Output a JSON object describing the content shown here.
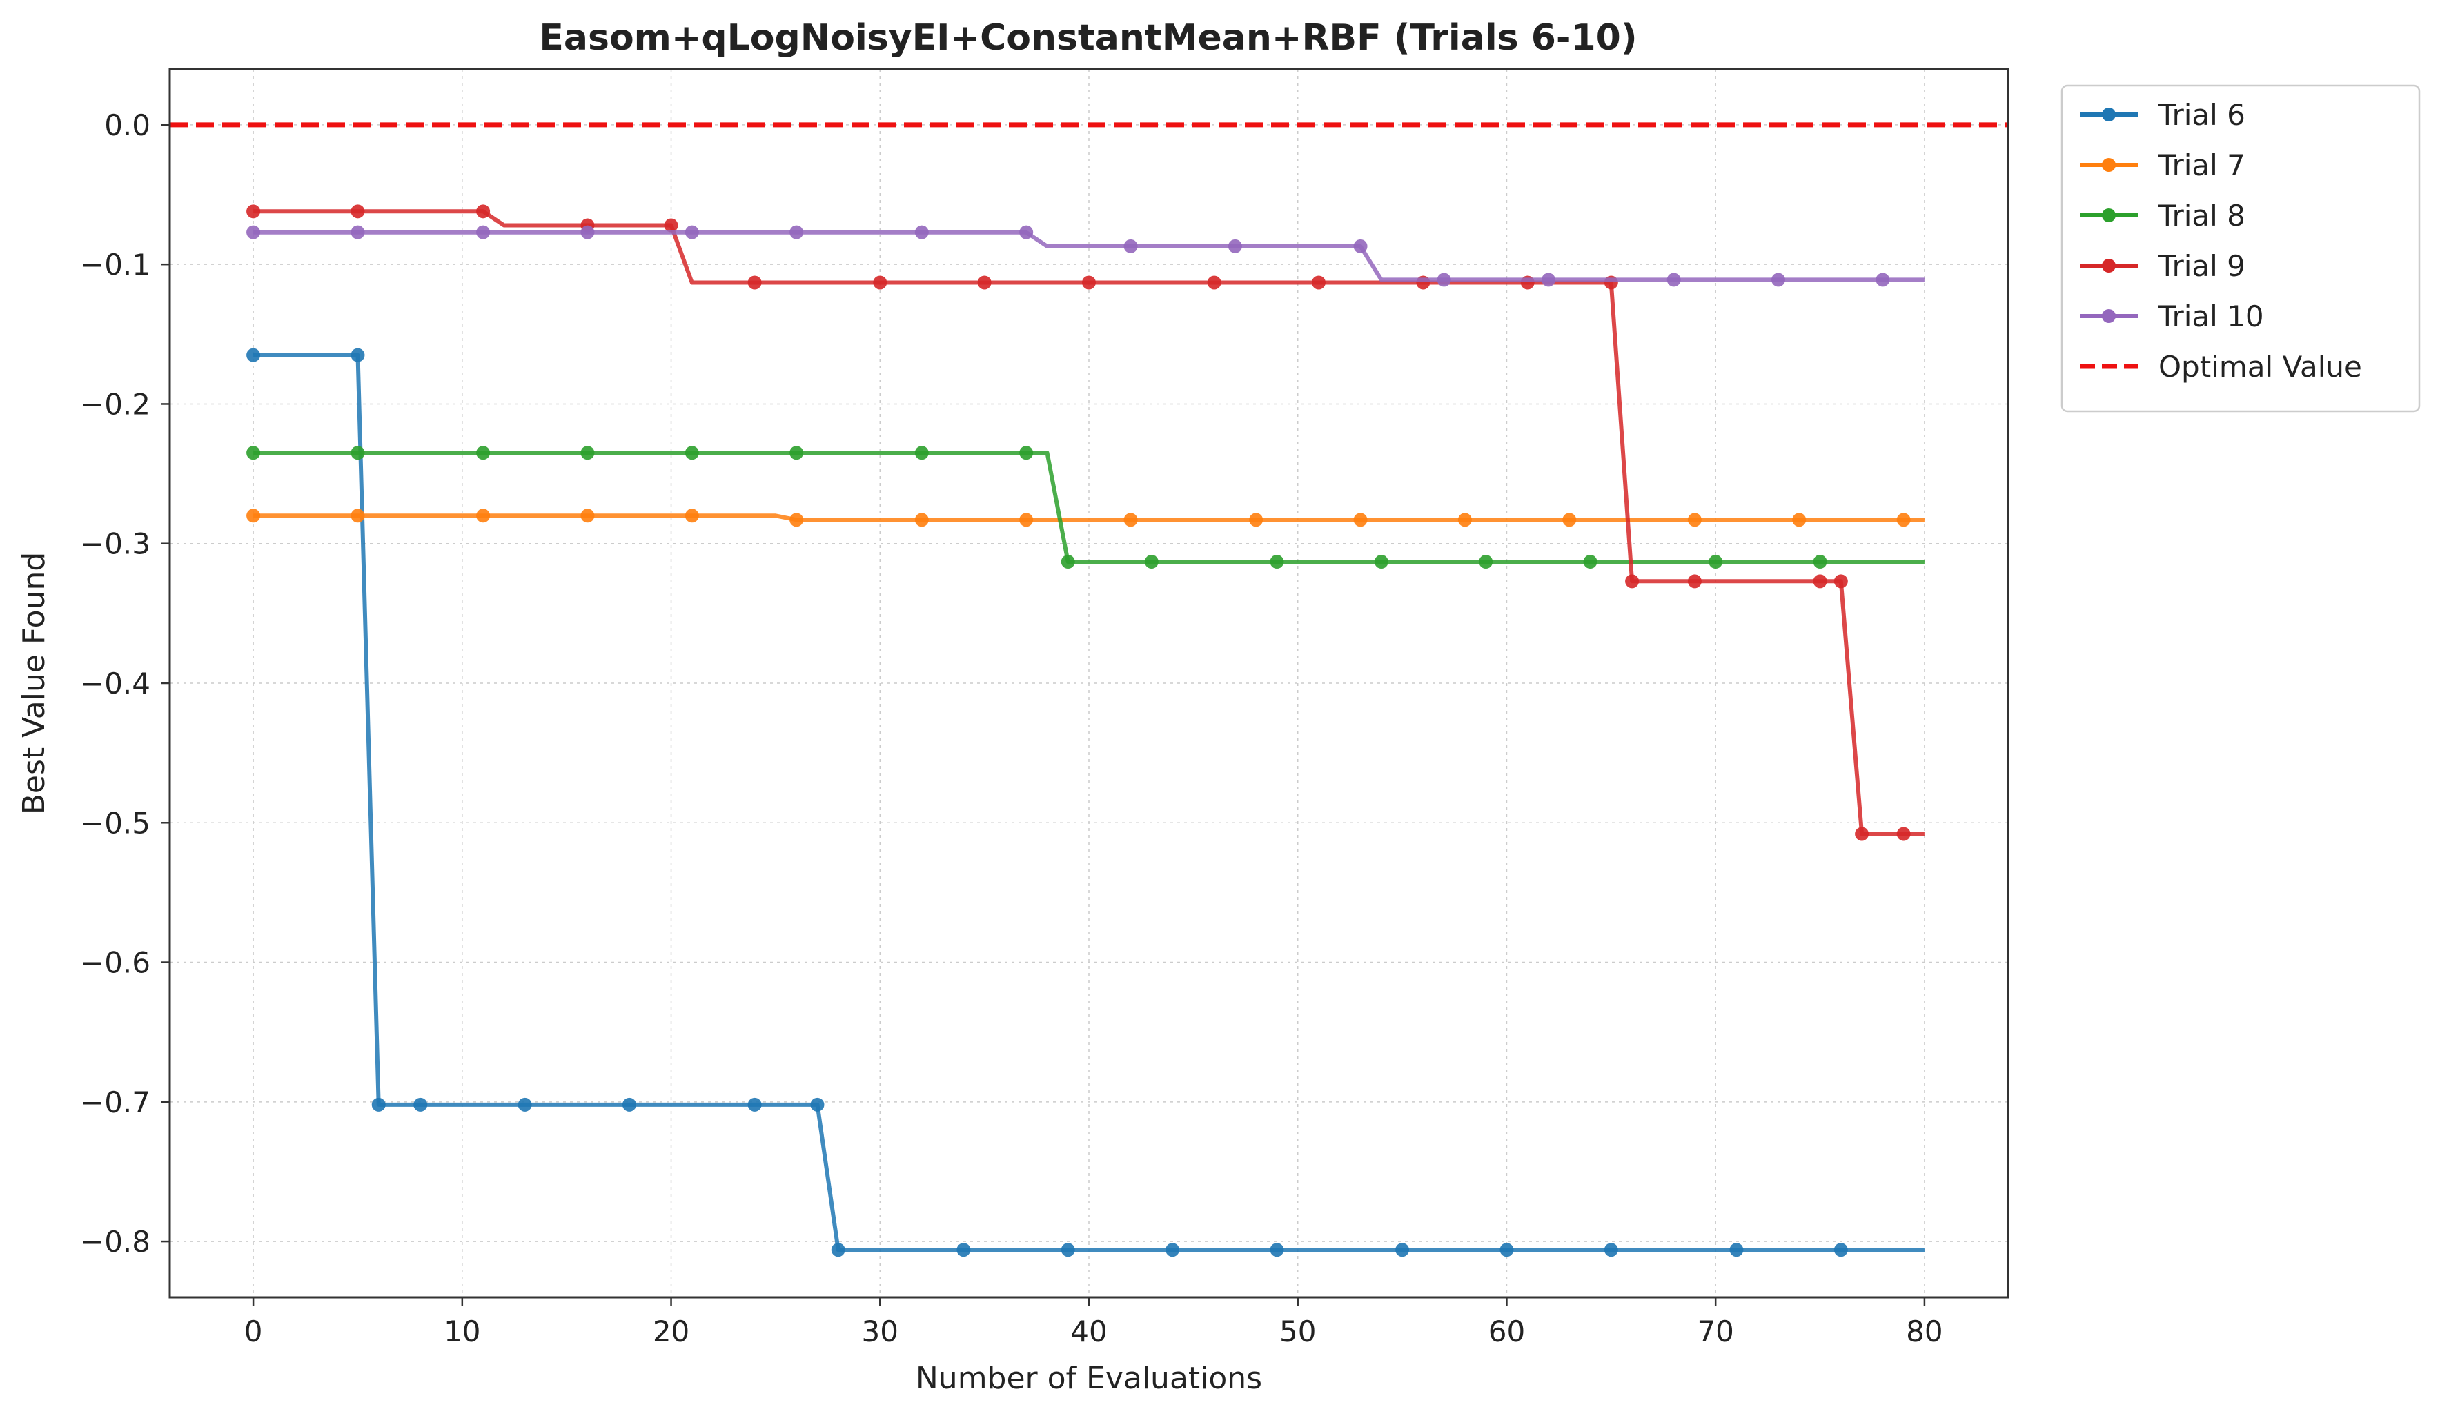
{
  "chart_data": {
    "type": "line",
    "title": "Easom+qLogNoisyEI+ConstantMean+RBF (Trials 6-10)",
    "xlabel": "Number of Evaluations",
    "ylabel": "Best Value Found",
    "xlim": [
      -4,
      84
    ],
    "ylim": [
      -0.84,
      0.04
    ],
    "xticks": [
      0,
      10,
      20,
      30,
      40,
      50,
      60,
      70,
      80
    ],
    "xtick_labels": [
      "0",
      "10",
      "20",
      "30",
      "40",
      "50",
      "60",
      "70",
      "80"
    ],
    "yticks": [
      0.0,
      -0.1,
      -0.2,
      -0.3,
      -0.4,
      -0.5,
      -0.6,
      -0.7,
      -0.8
    ],
    "ytick_labels": [
      "0.0",
      "−0.1",
      "−0.2",
      "−0.3",
      "−0.4",
      "−0.5",
      "−0.6",
      "−0.7",
      "−0.8"
    ],
    "grid": true,
    "legend_position": "outside-top-right",
    "series": [
      {
        "name": "Trial 6",
        "color": "#1f77b4",
        "steps": [
          [
            0,
            -0.165
          ],
          [
            5,
            -0.165
          ],
          [
            6,
            -0.702
          ],
          [
            27,
            -0.702
          ],
          [
            28,
            -0.806
          ],
          [
            80,
            -0.806
          ]
        ],
        "markers": [
          [
            0,
            -0.165
          ],
          [
            5,
            -0.165
          ],
          [
            6,
            -0.702
          ],
          [
            8,
            -0.702
          ],
          [
            13,
            -0.702
          ],
          [
            18,
            -0.702
          ],
          [
            24,
            -0.702
          ],
          [
            27,
            -0.702
          ],
          [
            28,
            -0.806
          ],
          [
            34,
            -0.806
          ],
          [
            39,
            -0.806
          ],
          [
            44,
            -0.806
          ],
          [
            49,
            -0.806
          ],
          [
            55,
            -0.806
          ],
          [
            60,
            -0.806
          ],
          [
            65,
            -0.806
          ],
          [
            71,
            -0.806
          ],
          [
            76,
            -0.806
          ]
        ]
      },
      {
        "name": "Trial 7",
        "color": "#ff7f0e",
        "steps": [
          [
            0,
            -0.28
          ],
          [
            25,
            -0.28
          ],
          [
            26,
            -0.283
          ],
          [
            80,
            -0.283
          ]
        ],
        "markers": [
          [
            0,
            -0.28
          ],
          [
            5,
            -0.28
          ],
          [
            11,
            -0.28
          ],
          [
            16,
            -0.28
          ],
          [
            21,
            -0.28
          ],
          [
            26,
            -0.283
          ],
          [
            32,
            -0.283
          ],
          [
            37,
            -0.283
          ],
          [
            42,
            -0.283
          ],
          [
            48,
            -0.283
          ],
          [
            53,
            -0.283
          ],
          [
            58,
            -0.283
          ],
          [
            63,
            -0.283
          ],
          [
            69,
            -0.283
          ],
          [
            74,
            -0.283
          ],
          [
            79,
            -0.283
          ]
        ]
      },
      {
        "name": "Trial 8",
        "color": "#2ca02c",
        "steps": [
          [
            0,
            -0.235
          ],
          [
            38,
            -0.235
          ],
          [
            39,
            -0.313
          ],
          [
            80,
            -0.313
          ]
        ],
        "markers": [
          [
            0,
            -0.235
          ],
          [
            5,
            -0.235
          ],
          [
            11,
            -0.235
          ],
          [
            16,
            -0.235
          ],
          [
            21,
            -0.235
          ],
          [
            26,
            -0.235
          ],
          [
            32,
            -0.235
          ],
          [
            37,
            -0.235
          ],
          [
            39,
            -0.313
          ],
          [
            43,
            -0.313
          ],
          [
            49,
            -0.313
          ],
          [
            54,
            -0.313
          ],
          [
            59,
            -0.313
          ],
          [
            64,
            -0.313
          ],
          [
            70,
            -0.313
          ],
          [
            75,
            -0.313
          ]
        ]
      },
      {
        "name": "Trial 9",
        "color": "#d62728",
        "steps": [
          [
            0,
            -0.062
          ],
          [
            11,
            -0.062
          ],
          [
            12,
            -0.072
          ],
          [
            20,
            -0.072
          ],
          [
            21,
            -0.113
          ],
          [
            65,
            -0.113
          ],
          [
            66,
            -0.327
          ],
          [
            76,
            -0.327
          ],
          [
            77,
            -0.508
          ],
          [
            80,
            -0.508
          ]
        ],
        "markers": [
          [
            0,
            -0.062
          ],
          [
            5,
            -0.062
          ],
          [
            11,
            -0.062
          ],
          [
            16,
            -0.072
          ],
          [
            20,
            -0.072
          ],
          [
            24,
            -0.113
          ],
          [
            30,
            -0.113
          ],
          [
            35,
            -0.113
          ],
          [
            40,
            -0.113
          ],
          [
            46,
            -0.113
          ],
          [
            51,
            -0.113
          ],
          [
            56,
            -0.113
          ],
          [
            61,
            -0.113
          ],
          [
            65,
            -0.113
          ],
          [
            66,
            -0.327
          ],
          [
            69,
            -0.327
          ],
          [
            75,
            -0.327
          ],
          [
            76,
            -0.327
          ],
          [
            77,
            -0.508
          ],
          [
            79,
            -0.508
          ]
        ]
      },
      {
        "name": "Trial 10",
        "color": "#9467bd",
        "steps": [
          [
            0,
            -0.077
          ],
          [
            37,
            -0.077
          ],
          [
            38,
            -0.087
          ],
          [
            53,
            -0.087
          ],
          [
            54,
            -0.111
          ],
          [
            80,
            -0.111
          ]
        ],
        "markers": [
          [
            0,
            -0.077
          ],
          [
            5,
            -0.077
          ],
          [
            11,
            -0.077
          ],
          [
            16,
            -0.077
          ],
          [
            21,
            -0.077
          ],
          [
            26,
            -0.077
          ],
          [
            32,
            -0.077
          ],
          [
            37,
            -0.077
          ],
          [
            42,
            -0.087
          ],
          [
            47,
            -0.087
          ],
          [
            53,
            -0.087
          ],
          [
            57,
            -0.111
          ],
          [
            62,
            -0.111
          ],
          [
            68,
            -0.111
          ],
          [
            73,
            -0.111
          ],
          [
            78,
            -0.111
          ]
        ]
      }
    ],
    "reference_line": {
      "name": "Optimal Value",
      "y": 0.0,
      "color": "#ee1111",
      "style": "dashed"
    }
  }
}
